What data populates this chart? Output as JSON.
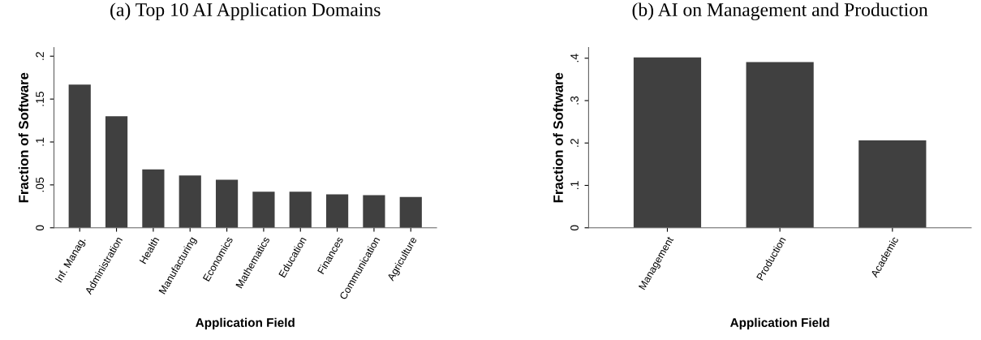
{
  "chart_data": [
    {
      "type": "bar",
      "title": "(a) Top 10 AI Application Domains",
      "xlabel": "Application Field",
      "ylabel": "Fraction of Software",
      "categories": [
        "Inf. Manag.",
        "Administration",
        "Health",
        "Manufacturing",
        "Economics",
        "Mathematics",
        "Education",
        "Finances",
        "Communication",
        "Agriculture"
      ],
      "values": [
        0.167,
        0.13,
        0.068,
        0.061,
        0.056,
        0.042,
        0.042,
        0.039,
        0.038,
        0.036
      ],
      "color": "#404040",
      "ylim": [
        0,
        0.21
      ],
      "yticks": [
        0,
        {
          "value": 0.05,
          "label": ".05"
        },
        {
          "value": 0.1,
          "label": ".1"
        },
        {
          "value": 0.15,
          "label": ".15"
        },
        {
          "value": 0.2,
          "label": ".2"
        }
      ],
      "grid": false
    },
    {
      "type": "bar",
      "title": "(b) AI on Management and Production",
      "xlabel": "Application Field",
      "ylabel": "Fraction of Software",
      "categories": [
        "Management",
        "Production",
        "Academic"
      ],
      "values": [
        0.402,
        0.391,
        0.206
      ],
      "color": "#404040",
      "ylim": [
        0,
        0.425
      ],
      "yticks": [
        0,
        {
          "value": 0.1,
          "label": ".1"
        },
        {
          "value": 0.2,
          "label": ".2"
        },
        {
          "value": 0.3,
          "label": ".3"
        },
        {
          "value": 0.4,
          "label": ".4"
        }
      ],
      "grid": false
    }
  ]
}
